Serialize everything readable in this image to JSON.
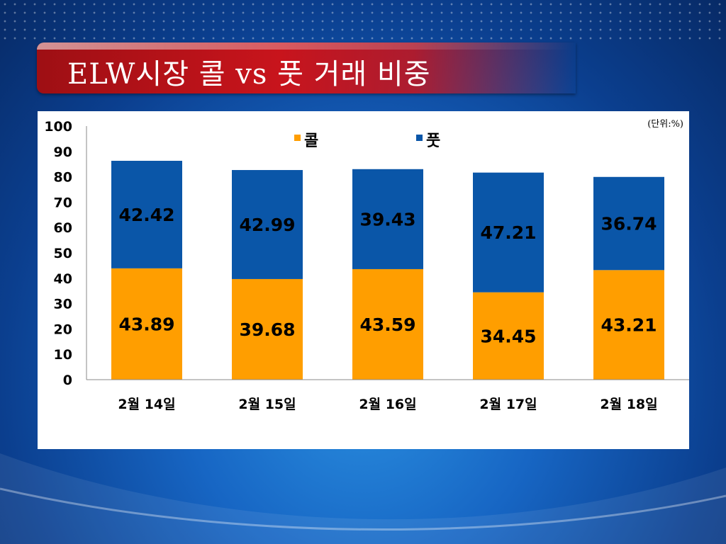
{
  "slide": {
    "title": "ELW시장 콜 vs 풋 거래 비중",
    "unit_note": "(단위:%)"
  },
  "colors": {
    "call": "#ff9e00",
    "put": "#0a56a8"
  },
  "chart_data": {
    "type": "bar",
    "stacked": true,
    "categories": [
      "2월 14일",
      "2월 15일",
      "2월 16일",
      "2월 17일",
      "2월 18일"
    ],
    "series": [
      {
        "name": "콜",
        "values": [
          43.89,
          39.68,
          43.59,
          34.45,
          43.21
        ]
      },
      {
        "name": "풋",
        "values": [
          42.42,
          42.99,
          39.43,
          47.21,
          36.74
        ]
      }
    ],
    "yticks": [
      "0",
      "10",
      "20",
      "30",
      "40",
      "50",
      "60",
      "70",
      "80",
      "90",
      "100"
    ],
    "ylim": [
      0,
      100
    ],
    "grid": false,
    "legend": "top-center"
  }
}
